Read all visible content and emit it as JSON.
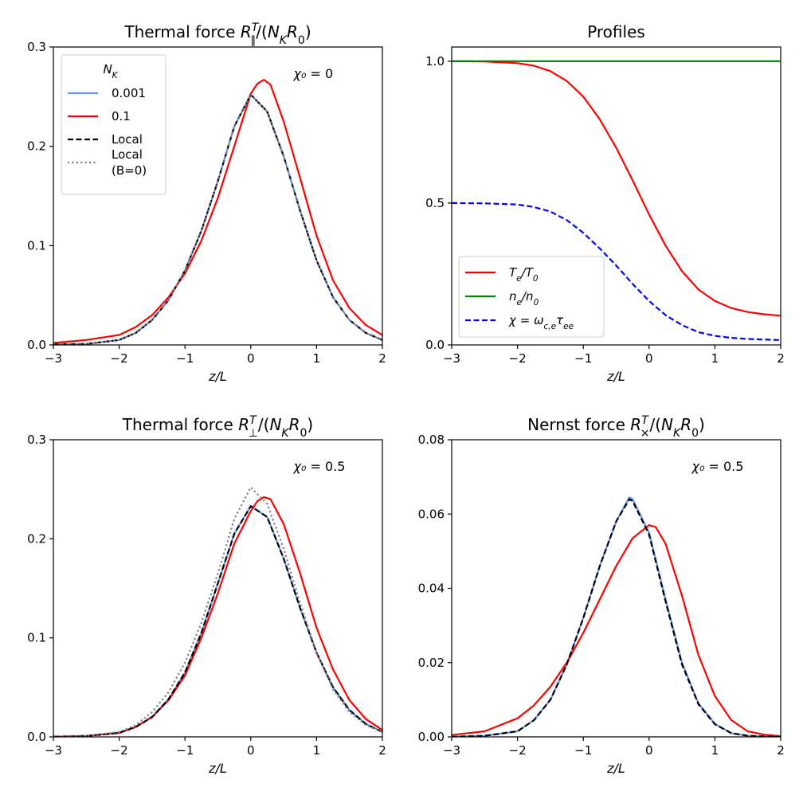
{
  "colors": {
    "nk_0001": "#6495ed",
    "nk_01": "#ff0000",
    "local": "#000000",
    "local_b0": "#808080",
    "te": "#ff0000",
    "ne": "#008000",
    "chi": "#0000ff"
  },
  "chart_data": [
    {
      "id": "thermal-par",
      "type": "line",
      "title": "Thermal force R∥T/(NKR0)",
      "title_parts": [
        "Thermal force R",
        "∥",
        "T",
        "/(N",
        "K",
        "R",
        "0",
        ")"
      ],
      "xlabel": "z/L",
      "ylabel": "",
      "xlim": [
        -3,
        2
      ],
      "ylim": [
        0,
        0.3
      ],
      "xticks": [
        -3,
        -2,
        -1,
        0,
        1,
        2
      ],
      "yticks": [
        0.0,
        0.1,
        0.2,
        0.3
      ],
      "ytick_labels": [
        "0.0",
        "0.1",
        "0.2",
        "0.3"
      ],
      "annotation": "χ₀ = 0",
      "legend": {
        "title": "N_K",
        "title_text": "N",
        "title_sub": "K",
        "placement": "top-left",
        "entries": [
          {
            "label": "0.001",
            "style": "solid",
            "color_key": "nk_0001"
          },
          {
            "label": "0.1",
            "style": "solid",
            "color_key": "nk_01"
          },
          {
            "label": "Local",
            "style": "dashed",
            "color_key": "local"
          },
          {
            "label": "Local",
            "label2": "(B=0)",
            "style": "dotted",
            "color_key": "local_b0"
          }
        ]
      },
      "series": [
        {
          "name": "0.001",
          "color_key": "nk_0001",
          "style": "solid",
          "width": 2.2,
          "x": [
            -3,
            -2.5,
            -2,
            -1.75,
            -1.5,
            -1.25,
            -1,
            -0.75,
            -0.5,
            -0.25,
            0,
            0.25,
            0.5,
            0.75,
            1,
            1.25,
            1.5,
            1.75,
            2
          ],
          "y": [
            0.0008,
            0.001,
            0.005,
            0.012,
            0.025,
            0.045,
            0.075,
            0.115,
            0.165,
            0.22,
            0.252,
            0.235,
            0.19,
            0.135,
            0.085,
            0.048,
            0.025,
            0.012,
            0.005
          ]
        },
        {
          "name": "0.1",
          "color_key": "nk_01",
          "style": "solid",
          "width": 2.2,
          "x": [
            -3,
            -2.5,
            -2,
            -1.75,
            -1.5,
            -1.25,
            -1,
            -0.75,
            -0.5,
            -0.25,
            0,
            0.1,
            0.2,
            0.3,
            0.5,
            0.75,
            1,
            1.25,
            1.5,
            1.75,
            2
          ],
          "y": [
            0.002,
            0.005,
            0.01,
            0.018,
            0.03,
            0.048,
            0.072,
            0.105,
            0.148,
            0.2,
            0.253,
            0.263,
            0.267,
            0.262,
            0.225,
            0.168,
            0.11,
            0.065,
            0.037,
            0.02,
            0.01
          ]
        },
        {
          "name": "Local",
          "color_key": "local",
          "style": "dashed",
          "width": 2.2,
          "x": [
            -3,
            -2.5,
            -2,
            -1.75,
            -1.5,
            -1.25,
            -1,
            -0.75,
            -0.5,
            -0.25,
            0,
            0.25,
            0.5,
            0.75,
            1,
            1.25,
            1.5,
            1.75,
            2
          ],
          "y": [
            0.0008,
            0.001,
            0.005,
            0.012,
            0.025,
            0.045,
            0.075,
            0.115,
            0.165,
            0.22,
            0.252,
            0.235,
            0.19,
            0.135,
            0.085,
            0.048,
            0.025,
            0.012,
            0.005
          ]
        },
        {
          "name": "Local (B=0)",
          "color_key": "local_b0",
          "style": "dotted",
          "width": 2.2,
          "x": [
            -3,
            -2.5,
            -2,
            -1.75,
            -1.5,
            -1.25,
            -1,
            -0.75,
            -0.5,
            -0.25,
            0,
            0.25,
            0.5,
            0.75,
            1,
            1.25,
            1.5,
            1.75,
            2
          ],
          "y": [
            0.0008,
            0.001,
            0.005,
            0.012,
            0.025,
            0.045,
            0.075,
            0.115,
            0.165,
            0.22,
            0.252,
            0.235,
            0.19,
            0.135,
            0.085,
            0.048,
            0.025,
            0.012,
            0.005
          ]
        }
      ]
    },
    {
      "id": "profiles",
      "type": "line",
      "title": "Profiles",
      "xlabel": "z/L",
      "ylabel": "",
      "xlim": [
        -3,
        2
      ],
      "ylim": [
        0,
        1.05
      ],
      "xticks": [
        -3,
        -2,
        -1,
        0,
        1,
        2
      ],
      "yticks": [
        0.0,
        0.5,
        1.0
      ],
      "ytick_labels": [
        "0.0",
        "0.5",
        "1.0"
      ],
      "legend": {
        "placement": "lower-left",
        "entries": [
          {
            "label": "Te/T0",
            "parts": [
              [
                "T",
                "it"
              ],
              [
                "e",
                "sub"
              ],
              [
                "/",
                "it"
              ],
              [
                "T",
                "it"
              ],
              [
                "0",
                "sub"
              ]
            ],
            "style": "solid",
            "color_key": "te"
          },
          {
            "label": "ne/n0",
            "parts": [
              [
                "n",
                "it"
              ],
              [
                "e",
                "sub"
              ],
              [
                "/",
                "it"
              ],
              [
                "n",
                "it"
              ],
              [
                "0",
                "sub"
              ]
            ],
            "style": "solid",
            "color_key": "ne"
          },
          {
            "label": "χ = ωc,e τee",
            "parts": [
              [
                "χ = ω",
                "it"
              ],
              [
                "c,e",
                "sub"
              ],
              [
                "τ",
                "it"
              ],
              [
                "ee",
                "sub"
              ]
            ],
            "style": "dashed",
            "color_key": "chi"
          }
        ]
      },
      "series": [
        {
          "name": "Te/T0",
          "color_key": "te",
          "style": "solid",
          "width": 2.2,
          "x": [
            -3,
            -2.5,
            -2,
            -1.75,
            -1.5,
            -1.25,
            -1,
            -0.75,
            -0.5,
            -0.25,
            0,
            0.25,
            0.5,
            0.75,
            1,
            1.25,
            1.5,
            1.75,
            2
          ],
          "y": [
            1.0,
            0.999,
            0.993,
            0.984,
            0.965,
            0.93,
            0.875,
            0.795,
            0.695,
            0.58,
            0.46,
            0.35,
            0.26,
            0.195,
            0.155,
            0.13,
            0.116,
            0.108,
            0.103
          ]
        },
        {
          "name": "ne/n0",
          "color_key": "ne",
          "style": "solid",
          "width": 2.2,
          "x": [
            -3,
            2
          ],
          "y": [
            1.0,
            1.0
          ]
        },
        {
          "name": "χ = ωc,e τee",
          "color_key": "chi",
          "style": "dashed",
          "width": 2.2,
          "x": [
            -3,
            -2.5,
            -2,
            -1.75,
            -1.5,
            -1.25,
            -1,
            -0.75,
            -0.5,
            -0.25,
            0,
            0.25,
            0.5,
            0.75,
            1,
            1.25,
            1.5,
            1.75,
            2
          ],
          "y": [
            0.5,
            0.499,
            0.495,
            0.486,
            0.47,
            0.44,
            0.395,
            0.34,
            0.28,
            0.215,
            0.155,
            0.105,
            0.07,
            0.045,
            0.032,
            0.025,
            0.021,
            0.019,
            0.017
          ]
        }
      ]
    },
    {
      "id": "thermal-perp",
      "type": "line",
      "title": "Thermal force R⊥T/(NKR0)",
      "title_parts": [
        "Thermal force R",
        "⊥",
        "T",
        "/(N",
        "K",
        "R",
        "0",
        ")"
      ],
      "xlabel": "z/L",
      "ylabel": "",
      "xlim": [
        -3,
        2
      ],
      "ylim": [
        0,
        0.3
      ],
      "xticks": [
        -3,
        -2,
        -1,
        0,
        1,
        2
      ],
      "yticks": [
        0.0,
        0.1,
        0.2,
        0.3
      ],
      "ytick_labels": [
        "0.0",
        "0.1",
        "0.2",
        "0.3"
      ],
      "annotation": "χ₀ = 0.5",
      "series": [
        {
          "name": "0.001",
          "color_key": "nk_0001",
          "style": "solid",
          "width": 2.2,
          "x": [
            -3,
            -2.5,
            -2,
            -1.75,
            -1.5,
            -1.25,
            -1,
            -0.75,
            -0.5,
            -0.25,
            0,
            0.25,
            0.5,
            0.75,
            1,
            1.25,
            1.5,
            1.75,
            2
          ],
          "y": [
            0.0,
            0.001,
            0.004,
            0.01,
            0.02,
            0.038,
            0.065,
            0.105,
            0.155,
            0.205,
            0.233,
            0.222,
            0.18,
            0.13,
            0.085,
            0.05,
            0.027,
            0.013,
            0.005
          ]
        },
        {
          "name": "0.1",
          "color_key": "nk_01",
          "style": "solid",
          "width": 2.2,
          "x": [
            -3,
            -2.5,
            -2,
            -1.75,
            -1.5,
            -1.25,
            -1,
            -0.75,
            -0.5,
            -0.25,
            0,
            0.1,
            0.2,
            0.3,
            0.5,
            0.75,
            1,
            1.25,
            1.5,
            1.75,
            2
          ],
          "y": [
            0.0,
            0.001,
            0.004,
            0.01,
            0.02,
            0.037,
            0.062,
            0.1,
            0.145,
            0.195,
            0.228,
            0.238,
            0.242,
            0.24,
            0.215,
            0.165,
            0.11,
            0.068,
            0.037,
            0.018,
            0.007
          ]
        },
        {
          "name": "Local",
          "color_key": "local",
          "style": "dashed",
          "width": 2.2,
          "x": [
            -3,
            -2.5,
            -2,
            -1.75,
            -1.5,
            -1.25,
            -1,
            -0.75,
            -0.5,
            -0.25,
            0,
            0.25,
            0.5,
            0.75,
            1,
            1.25,
            1.5,
            1.75,
            2
          ],
          "y": [
            0.0,
            0.001,
            0.004,
            0.01,
            0.02,
            0.038,
            0.065,
            0.105,
            0.155,
            0.205,
            0.233,
            0.222,
            0.18,
            0.13,
            0.085,
            0.05,
            0.027,
            0.013,
            0.005
          ]
        },
        {
          "name": "Local (B=0)",
          "color_key": "local_b0",
          "style": "dotted",
          "width": 2.2,
          "x": [
            -3,
            -2.5,
            -2,
            -1.75,
            -1.5,
            -1.25,
            -1,
            -0.75,
            -0.5,
            -0.25,
            0,
            0.25,
            0.5,
            0.75,
            1,
            1.25,
            1.5,
            1.75,
            2
          ],
          "y": [
            0.0008,
            0.001,
            0.005,
            0.012,
            0.025,
            0.045,
            0.075,
            0.115,
            0.165,
            0.22,
            0.252,
            0.235,
            0.19,
            0.135,
            0.085,
            0.048,
            0.025,
            0.012,
            0.005
          ]
        }
      ]
    },
    {
      "id": "nernst",
      "type": "line",
      "title": "Nernst force R×T/(NKR0)",
      "title_parts": [
        "Nernst force R",
        "×",
        "T",
        "/(N",
        "K",
        "R",
        "0",
        ")"
      ],
      "xlabel": "z/L",
      "ylabel": "",
      "xlim": [
        -3,
        2
      ],
      "ylim": [
        0,
        0.08
      ],
      "xticks": [
        -3,
        -2,
        -1,
        0,
        1,
        2
      ],
      "yticks": [
        0.0,
        0.02,
        0.04,
        0.06,
        0.08
      ],
      "ytick_labels": [
        "0.00",
        "0.02",
        "0.04",
        "0.06",
        "0.08"
      ],
      "annotation": "χ₀ = 0.5",
      "series": [
        {
          "name": "0.001",
          "color_key": "nk_0001",
          "style": "solid",
          "width": 2.2,
          "x": [
            -3,
            -2.5,
            -2,
            -1.75,
            -1.5,
            -1.25,
            -1,
            -0.75,
            -0.5,
            -0.3,
            -0.25,
            0,
            0.25,
            0.5,
            0.75,
            1,
            1.25,
            1.5,
            1.75,
            2
          ],
          "y": [
            0.0,
            0.0003,
            0.0015,
            0.0045,
            0.01,
            0.0195,
            0.032,
            0.046,
            0.058,
            0.0645,
            0.064,
            0.055,
            0.037,
            0.02,
            0.009,
            0.0035,
            0.001,
            0.0003,
            0.0001,
            0.0
          ]
        },
        {
          "name": "0.1",
          "color_key": "nk_01",
          "style": "solid",
          "width": 2.2,
          "x": [
            -3,
            -2.5,
            -2,
            -1.75,
            -1.5,
            -1.25,
            -1,
            -0.75,
            -0.5,
            -0.25,
            0,
            0.1,
            0.25,
            0.5,
            0.75,
            1,
            1.25,
            1.5,
            1.75,
            2
          ],
          "y": [
            0.0005,
            0.0015,
            0.005,
            0.0085,
            0.0135,
            0.02,
            0.028,
            0.037,
            0.046,
            0.0535,
            0.057,
            0.0565,
            0.052,
            0.038,
            0.022,
            0.011,
            0.0045,
            0.0015,
            0.0006,
            0.0002
          ]
        },
        {
          "name": "Local",
          "color_key": "local",
          "style": "dashed",
          "width": 2.2,
          "x": [
            -3,
            -2.5,
            -2,
            -1.75,
            -1.5,
            -1.25,
            -1,
            -0.75,
            -0.5,
            -0.3,
            -0.25,
            0,
            0.25,
            0.5,
            0.75,
            1,
            1.25,
            1.5,
            1.75,
            2
          ],
          "y": [
            0.0,
            0.0003,
            0.0015,
            0.0045,
            0.01,
            0.0195,
            0.032,
            0.046,
            0.058,
            0.064,
            0.0635,
            0.0545,
            0.0365,
            0.0195,
            0.0088,
            0.0034,
            0.001,
            0.0003,
            0.0001,
            0.0
          ]
        }
      ]
    }
  ]
}
